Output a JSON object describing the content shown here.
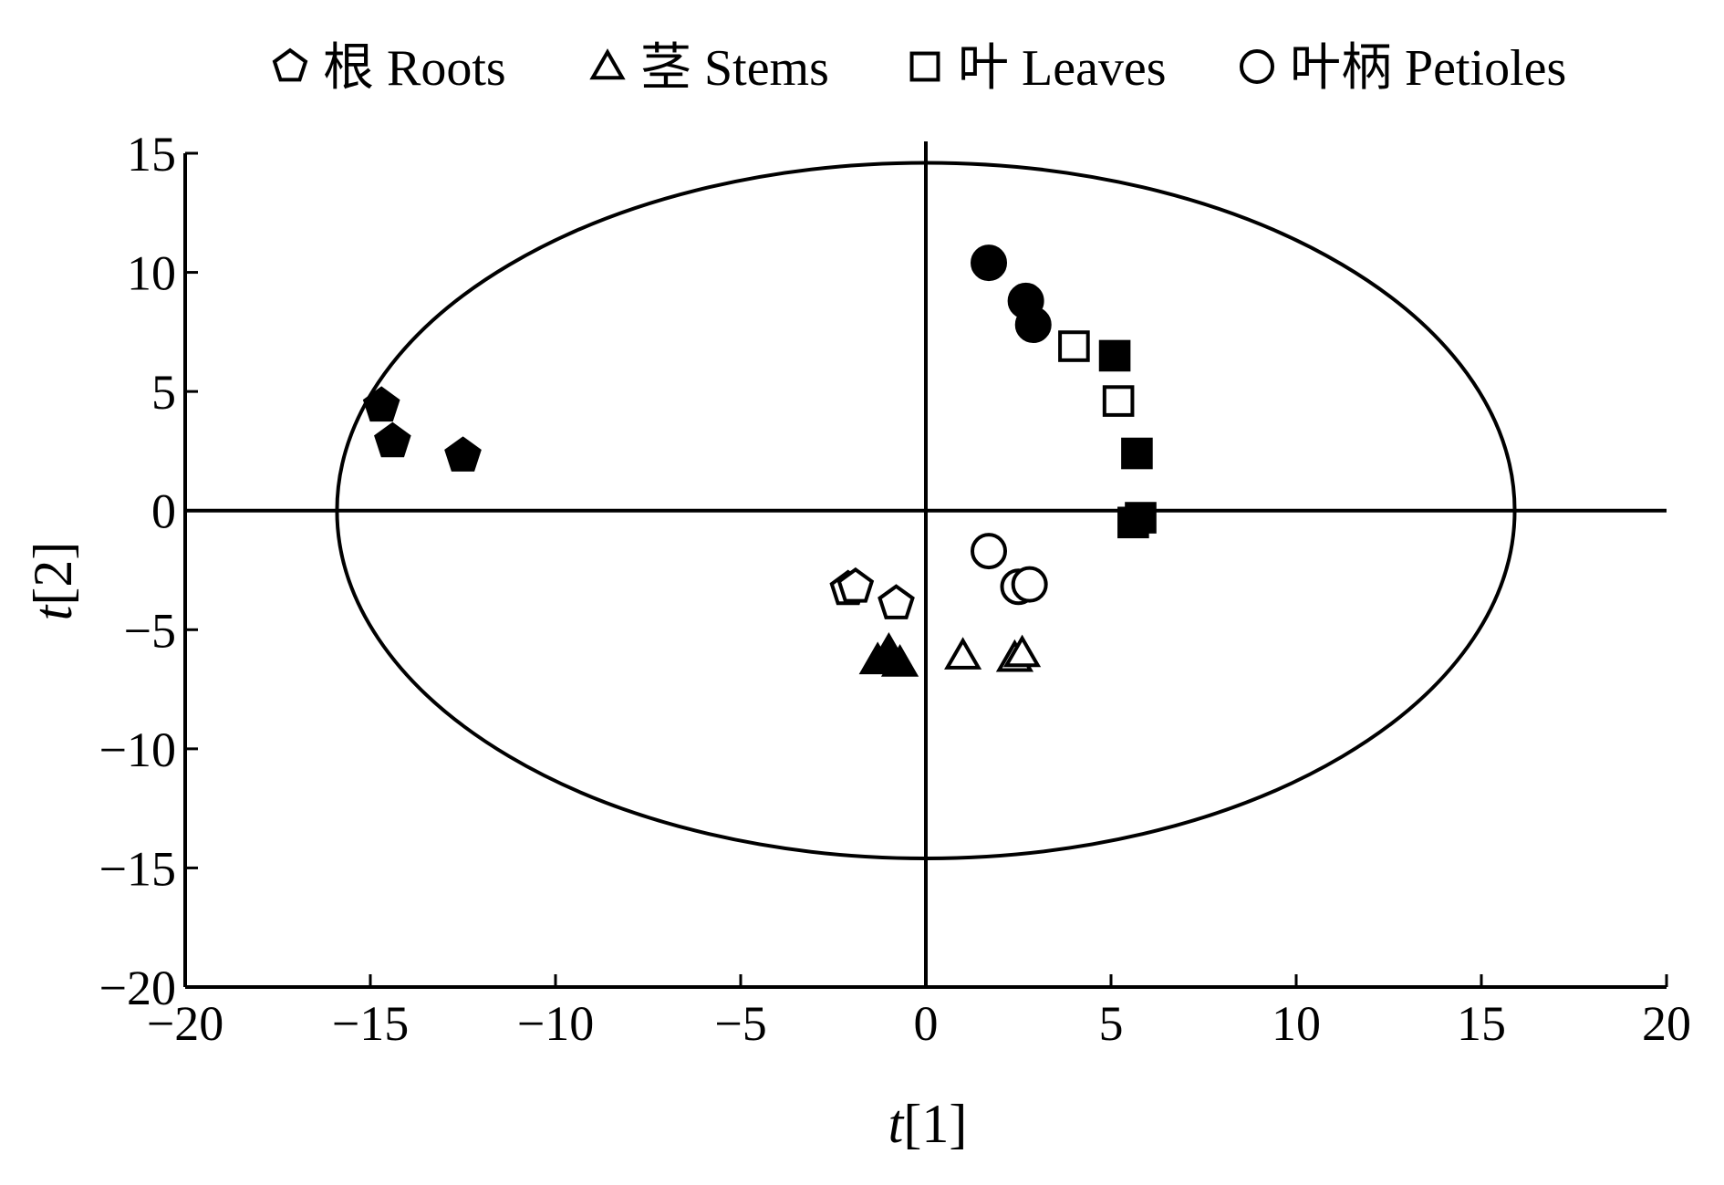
{
  "chart_data": {
    "type": "scatter",
    "title": "",
    "xlabel": {
      "italic": "t",
      "rest": "[1]"
    },
    "ylabel": {
      "italic": "t",
      "rest": "[2]"
    },
    "xlim": [
      -20,
      20
    ],
    "ylim": [
      -20,
      15
    ],
    "xticks": [
      -20,
      -15,
      -10,
      -5,
      0,
      5,
      10,
      15,
      20
    ],
    "yticks": [
      15,
      10,
      5,
      0,
      -5,
      -10,
      -15,
      -20
    ],
    "xtick_labels": [
      "−20",
      "−15",
      "−10",
      "−5",
      "0",
      "5",
      "10",
      "15",
      "20"
    ],
    "ytick_labels": [
      "15",
      "10",
      "5",
      "0",
      "−5",
      "−10",
      "−15",
      "−20"
    ],
    "ellipse": {
      "cx": 0,
      "cy": 0,
      "rx": 15.9,
      "ry": 14.6
    },
    "grid": false,
    "legend_position": "top",
    "legend": [
      {
        "label": "根 Roots",
        "marker": "pentagon"
      },
      {
        "label": "茎 Stems",
        "marker": "triangle"
      },
      {
        "label": "叶 Leaves",
        "marker": "square"
      },
      {
        "label": "叶柄 Petioles",
        "marker": "circle"
      }
    ],
    "series": [
      {
        "group": "Roots",
        "filled": true,
        "marker": "pentagon",
        "points": [
          [
            -14.7,
            4.4
          ],
          [
            -14.4,
            2.9
          ],
          [
            -12.5,
            2.3
          ]
        ]
      },
      {
        "group": "Roots",
        "filled": false,
        "marker": "pentagon",
        "points": [
          [
            -2.1,
            -3.3
          ],
          [
            -1.9,
            -3.2
          ],
          [
            -0.8,
            -3.9
          ]
        ]
      },
      {
        "group": "Stems",
        "filled": true,
        "marker": "triangle",
        "points": [
          [
            -1.3,
            -6.3
          ],
          [
            -1.0,
            -5.9
          ],
          [
            -0.7,
            -6.4
          ]
        ]
      },
      {
        "group": "Stems",
        "filled": false,
        "marker": "triangle",
        "points": [
          [
            1.0,
            -6.1
          ],
          [
            2.4,
            -6.2
          ],
          [
            2.6,
            -6.0
          ]
        ]
      },
      {
        "group": "Leaves",
        "filled": true,
        "marker": "square",
        "points": [
          [
            5.1,
            6.5
          ],
          [
            5.7,
            2.4
          ],
          [
            5.8,
            -0.3
          ],
          [
            5.6,
            -0.5
          ]
        ]
      },
      {
        "group": "Leaves",
        "filled": false,
        "marker": "square",
        "points": [
          [
            4.0,
            6.9
          ],
          [
            5.2,
            4.6
          ]
        ]
      },
      {
        "group": "Petioles",
        "filled": true,
        "marker": "circle",
        "points": [
          [
            1.7,
            10.4
          ],
          [
            2.7,
            8.8
          ],
          [
            2.9,
            7.8
          ]
        ]
      },
      {
        "group": "Petioles",
        "filled": false,
        "marker": "circle",
        "points": [
          [
            1.7,
            -1.7
          ],
          [
            2.5,
            -3.2
          ],
          [
            2.8,
            -3.1
          ]
        ]
      }
    ]
  }
}
